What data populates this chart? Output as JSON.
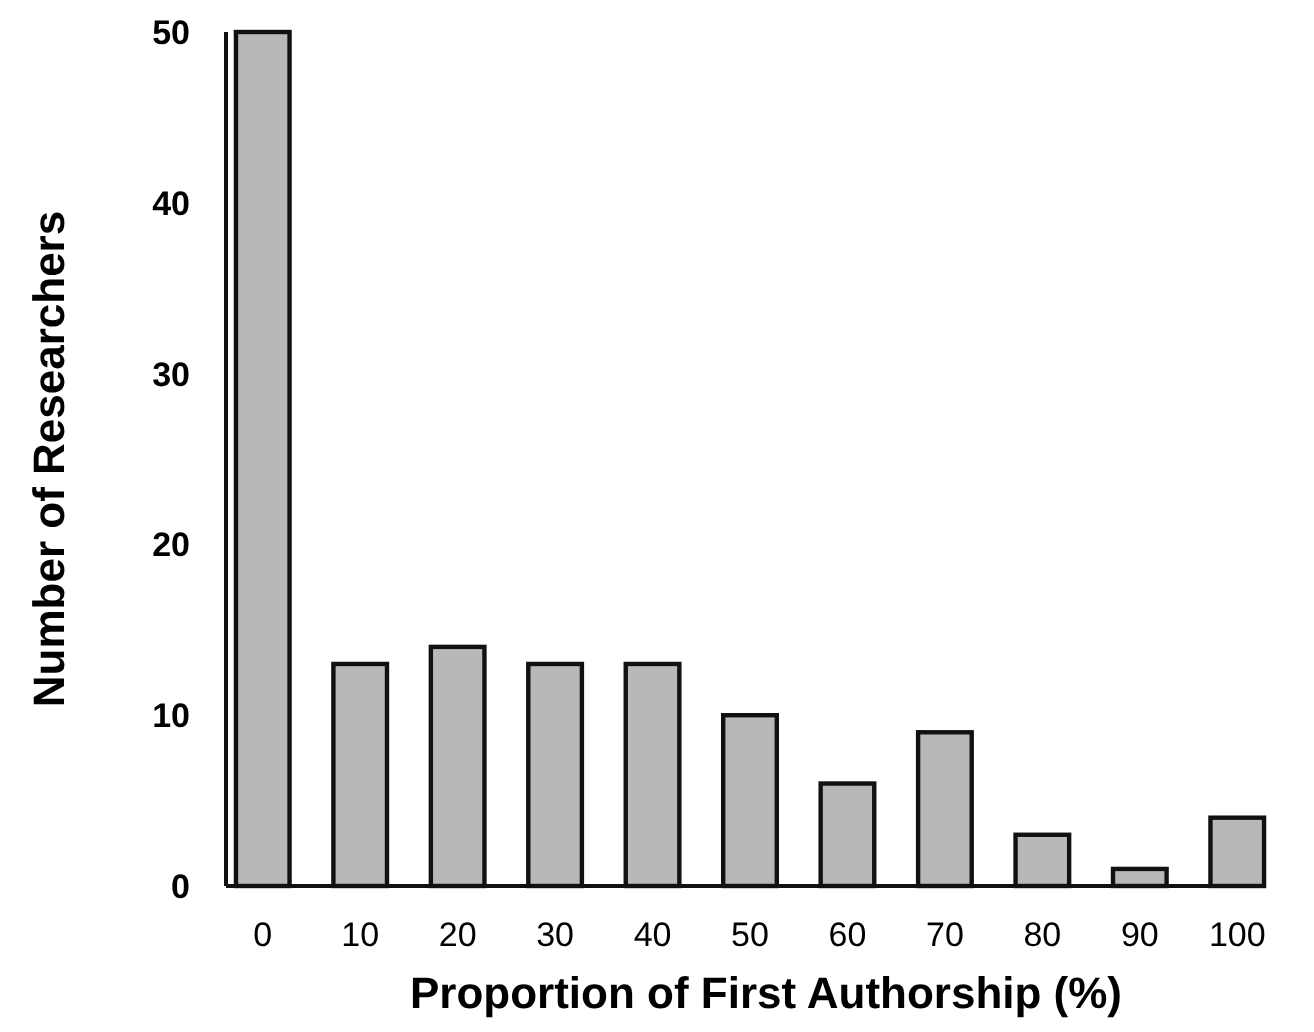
{
  "chart_data": {
    "type": "bar",
    "xlabel": "Proportion of First Authorship (%)",
    "ylabel": "Number of Researchers",
    "categories": [
      "0",
      "10",
      "20",
      "30",
      "40",
      "50",
      "60",
      "70",
      "80",
      "90",
      "100"
    ],
    "values": [
      50,
      13,
      14,
      13,
      13,
      10,
      6,
      9,
      3,
      1,
      4
    ],
    "color": "#b8b8b8",
    "ylim": [
      0,
      50
    ],
    "yticks": [
      0,
      10,
      20,
      30,
      40,
      50
    ],
    "grid": false
  }
}
